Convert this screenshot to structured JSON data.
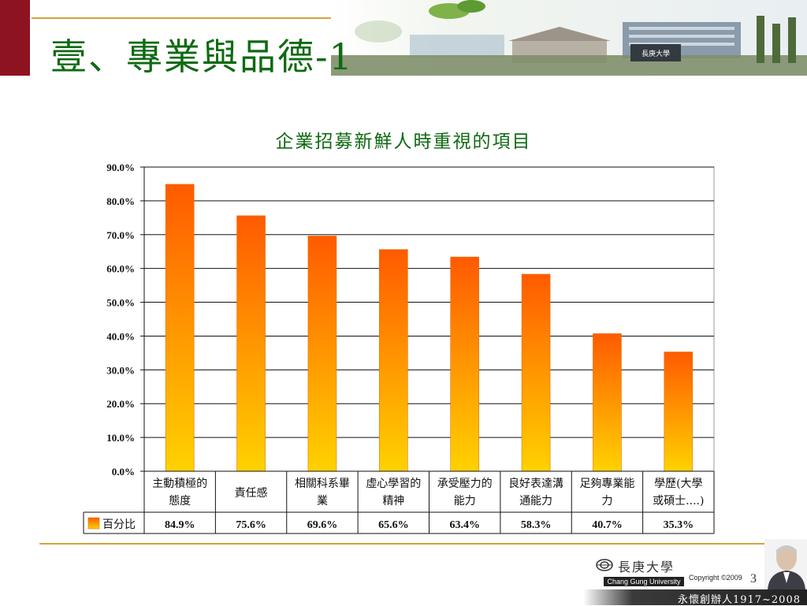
{
  "slide": {
    "title": "壹、專業與品德-1",
    "number": "3"
  },
  "header": {
    "campus_sign": "長庚大學"
  },
  "footer": {
    "university_cn": "長庚大學",
    "university_en": "Chang Gung University",
    "copyright": "Copyright ©2009",
    "motto": "永懷創辦人1917~2008"
  },
  "colors": {
    "title_green": "#0f6a12",
    "accent_gold": "#d9a13a",
    "left_bar_red": "#8e1320",
    "bar_top": "#ff5a00",
    "bar_bottom": "#ffd200"
  },
  "chart_data": {
    "type": "bar",
    "title": "企業招募新鮮人時重視的項目",
    "categories": [
      [
        "主動積極的",
        "態度"
      ],
      [
        "責任感"
      ],
      [
        "相關科系畢",
        "業"
      ],
      [
        "虛心學習的",
        "精神"
      ],
      [
        "承受壓力的",
        "能力"
      ],
      [
        "良好表達溝",
        "通能力"
      ],
      [
        "足夠專業能",
        "力"
      ],
      [
        "學歷(大學",
        "或碩士....)"
      ]
    ],
    "series": [
      {
        "name": "百分比",
        "values": [
          84.9,
          75.6,
          69.6,
          65.6,
          63.4,
          58.3,
          40.7,
          35.3
        ],
        "labels": [
          "84.9%",
          "75.6%",
          "69.6%",
          "65.6%",
          "63.4%",
          "58.3%",
          "40.7%",
          "35.3%"
        ]
      }
    ],
    "ylim": [
      0,
      90
    ],
    "yticks": [
      "0.0%",
      "10.0%",
      "20.0%",
      "30.0%",
      "40.0%",
      "50.0%",
      "60.0%",
      "70.0%",
      "80.0%",
      "90.0%"
    ],
    "grid": true,
    "legend": "data-table"
  }
}
